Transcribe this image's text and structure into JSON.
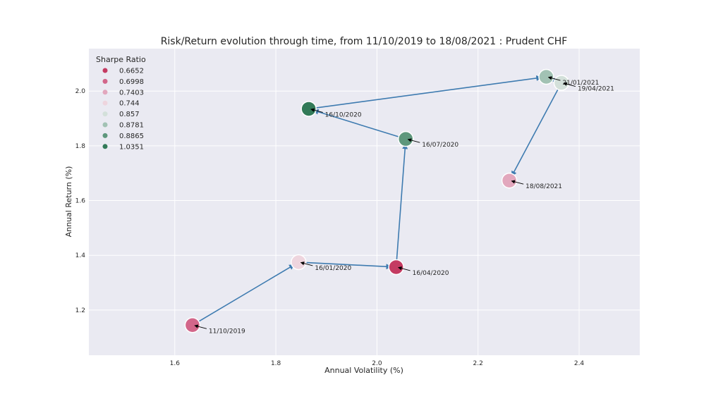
{
  "chart_data": {
    "type": "scatter",
    "title": "Risk/Return evolution through time, from 11/10/2019 to 18/08/2021 : Prudent CHF",
    "xlabel": "Annual Volatility (%)",
    "ylabel": "Annual Return (%)",
    "xlim": [
      1.43,
      2.52
    ],
    "ylim": [
      1.035,
      2.155
    ],
    "xticks": [
      1.6,
      1.8,
      2.0,
      2.2,
      2.4
    ],
    "xtick_labels": [
      "1.6",
      "1.8",
      "2.0",
      "2.2",
      "2.4"
    ],
    "yticks": [
      1.2,
      1.4,
      1.6,
      1.8,
      2.0
    ],
    "ytick_labels": [
      "1.2",
      "1.4",
      "1.6",
      "1.8",
      "2.0"
    ],
    "grid": true,
    "legend": {
      "title": "Sharpe Ratio",
      "placement": "top-left",
      "entries": [
        {
          "label": "0.6652",
          "color": "#c43b62"
        },
        {
          "label": "0.6998",
          "color": "#d2668a"
        },
        {
          "label": "0.7403",
          "color": "#e2a7bd"
        },
        {
          "label": "0.744",
          "color": "#eed5de"
        },
        {
          "label": "0.857",
          "color": "#d3e0da"
        },
        {
          "label": "0.8781",
          "color": "#a2c2b4"
        },
        {
          "label": "0.8865",
          "color": "#5e977c"
        },
        {
          "label": "1.0351",
          "color": "#327a58"
        }
      ]
    },
    "points": [
      {
        "date": "11/10/2019",
        "x": 1.635,
        "y": 1.145,
        "sharpe": 0.6998,
        "color": "#d2668a"
      },
      {
        "date": "16/01/2020",
        "x": 1.845,
        "y": 1.375,
        "sharpe": 0.744,
        "color": "#eed5de"
      },
      {
        "date": "16/04/2020",
        "x": 2.038,
        "y": 1.357,
        "sharpe": 0.6652,
        "color": "#c43b62"
      },
      {
        "date": "16/07/2020",
        "x": 2.057,
        "y": 1.825,
        "sharpe": 0.8865,
        "color": "#5e977c"
      },
      {
        "date": "16/10/2020",
        "x": 1.865,
        "y": 1.935,
        "sharpe": 1.0351,
        "color": "#327a58"
      },
      {
        "date": "21/01/2021",
        "x": 2.335,
        "y": 2.052,
        "sharpe": 0.8781,
        "color": "#a2c2b4"
      },
      {
        "date": "19/04/2021",
        "x": 2.365,
        "y": 2.03,
        "sharpe": 0.857,
        "color": "#d3e0da"
      },
      {
        "date": "18/08/2021",
        "x": 2.262,
        "y": 1.673,
        "sharpe": 0.7403,
        "color": "#e2a7bd"
      }
    ],
    "arrow_color": "#3e7bb0"
  }
}
